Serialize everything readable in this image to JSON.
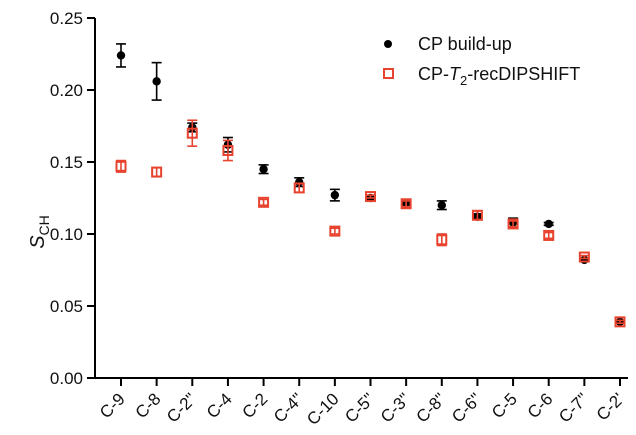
{
  "chart_data": {
    "type": "scatter",
    "ylabel": "S",
    "ylabel_sub": "CH",
    "ylim": [
      0,
      0.25
    ],
    "yticks": [
      "0.00",
      "0.05",
      "0.10",
      "0.15",
      "0.20",
      "0.25"
    ],
    "categories": [
      "C-9",
      "C-8",
      "C-2\"",
      "C-4",
      "C-2",
      "C-4\"",
      "C-10",
      "C-5\"",
      "C-3\"",
      "C-8\"",
      "C-6\"",
      "C-5",
      "C-6",
      "C-7\"",
      "C-2'"
    ],
    "legend_placement": "top-right",
    "series": [
      {
        "name": "CP build-up",
        "color": "#000000",
        "marker": "filled-circle",
        "values": [
          0.224,
          0.206,
          0.174,
          0.162,
          0.145,
          0.136,
          0.127,
          0.125,
          0.121,
          0.12,
          0.112,
          0.108,
          0.107,
          0.082,
          0.039
        ],
        "errors": [
          0.008,
          0.013,
          0.003,
          0.005,
          0.003,
          0.003,
          0.004,
          0.001,
          0.003,
          0.003,
          0.002,
          0.003,
          0.001,
          0.001,
          0.001
        ]
      },
      {
        "name_parts": [
          "CP-",
          "T",
          "2",
          "-recDIPSHIFT"
        ],
        "color": "#e8432f",
        "marker": "open-square",
        "values": [
          0.147,
          0.143,
          0.17,
          0.158,
          0.122,
          0.132,
          0.102,
          0.126,
          0.121,
          0.096,
          0.113,
          0.107,
          0.099,
          0.084,
          0.039
        ],
        "errors": [
          0.004,
          0.003,
          0.009,
          0.007,
          0.002,
          0.003,
          0.002,
          0.001,
          0.002,
          0.004,
          0.003,
          0.002,
          0.002,
          0.001,
          0.001
        ]
      }
    ]
  }
}
